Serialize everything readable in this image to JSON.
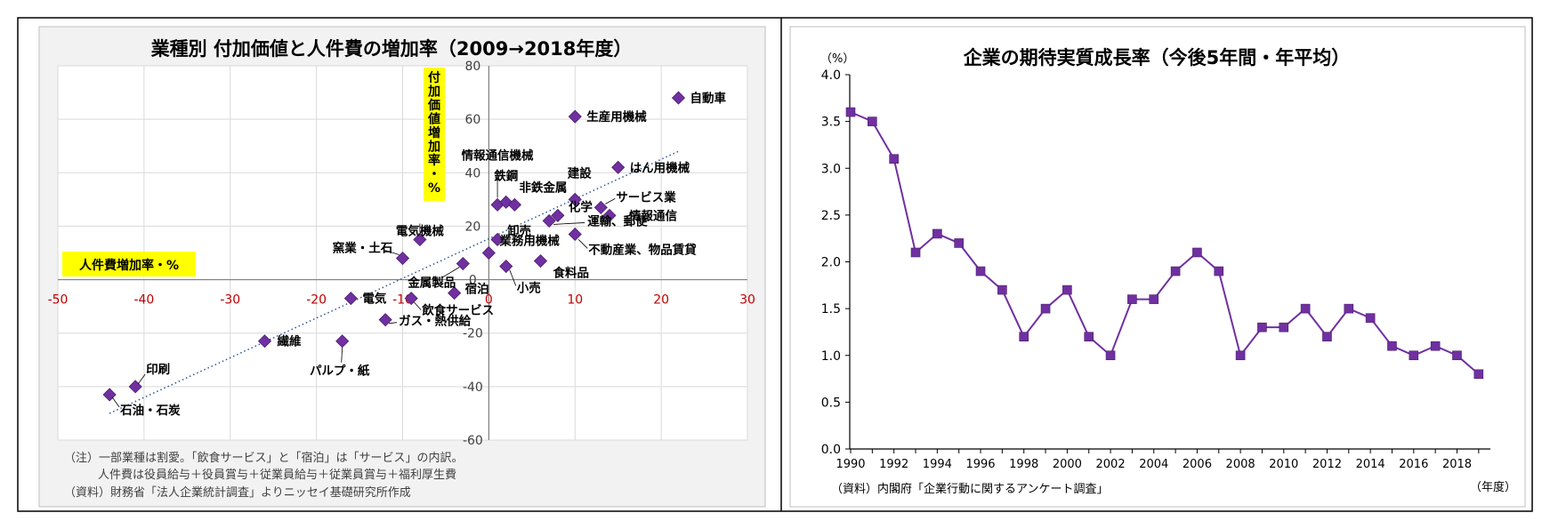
{
  "colors": {
    "point": "#7030A0",
    "point_edge": "#4B1E70",
    "trend": "#2F5597",
    "axis_tick_red": "#C00000",
    "highlight": "#FFFF00",
    "panel_bg": "#F2F2F2",
    "grid": "#D9D9D9"
  },
  "chart_data": [
    {
      "type": "scatter",
      "title": "業種別 付加価値と人件費の増加率（2009→2018年度）",
      "xlabel": "人件費増加率・%",
      "ylabel": "付加価値増加率・%",
      "xlim": [
        -50,
        30
      ],
      "ylim": [
        -60,
        80
      ],
      "xticks": [
        -50,
        -40,
        -30,
        -20,
        -10,
        0,
        10,
        20,
        30
      ],
      "yticks": [
        -60,
        -40,
        -20,
        0,
        20,
        40,
        60,
        80
      ],
      "grid": true,
      "trendline": {
        "style": "dotted",
        "from": [
          -44,
          -50
        ],
        "to": [
          22,
          48
        ]
      },
      "points": [
        {
          "label": "自動車",
          "x": 22,
          "y": 68
        },
        {
          "label": "生産用機械",
          "x": 10,
          "y": 61
        },
        {
          "label": "はん用機械",
          "x": 15,
          "y": 42
        },
        {
          "label": "情報通信機械",
          "x": 1,
          "y": 28
        },
        {
          "label": "鉄鋼",
          "x": 2,
          "y": 29
        },
        {
          "label": "非鉄金属",
          "x": 3,
          "y": 28
        },
        {
          "label": "建設",
          "x": 10,
          "y": 30
        },
        {
          "label": "サービス業",
          "x": 13,
          "y": 27
        },
        {
          "label": "情報通信",
          "x": 14,
          "y": 24
        },
        {
          "label": "化学",
          "x": 8,
          "y": 24
        },
        {
          "label": "運輸、郵便",
          "x": 7,
          "y": 22
        },
        {
          "label": "不動産業、物品賃貸",
          "x": 10,
          "y": 17
        },
        {
          "label": "電気機械",
          "x": -8,
          "y": 15
        },
        {
          "label": "卸売",
          "x": 1,
          "y": 15
        },
        {
          "label": "業務用機械",
          "x": 0,
          "y": 10
        },
        {
          "label": "窯業・土石",
          "x": -10,
          "y": 8
        },
        {
          "label": "金属製品",
          "x": -3,
          "y": 6
        },
        {
          "label": "食料品",
          "x": 6,
          "y": 7
        },
        {
          "label": "小売",
          "x": 2,
          "y": 5
        },
        {
          "label": "宿泊",
          "x": -4,
          "y": -5
        },
        {
          "label": "電気",
          "x": -16,
          "y": -7
        },
        {
          "label": "飲食サービス",
          "x": -9,
          "y": -7
        },
        {
          "label": "ガス・熱供給",
          "x": -12,
          "y": -15
        },
        {
          "label": "繊維",
          "x": -26,
          "y": -23
        },
        {
          "label": "パルプ・紙",
          "x": -17,
          "y": -23
        },
        {
          "label": "印刷",
          "x": -41,
          "y": -40
        },
        {
          "label": "石油・石炭",
          "x": -44,
          "y": -43
        }
      ],
      "notes": [
        "（注）一部業種は割愛。「飲食サービス」と「宿泊」は「サービス」の内訳。",
        "人件費は役員給与＋役員賞与＋従業員給与＋従業員賞与＋福利厚生費",
        "（資料）財務省「法人企業統計調査」よりニッセイ基礎研究所作成"
      ]
    },
    {
      "type": "line",
      "title": "企業の期待実質成長率（今後5年間・年平均）",
      "y_unit": "（%）",
      "x_unit": "（年度）",
      "ylim": [
        0.0,
        4.0
      ],
      "yticks": [
        "0.0",
        "0.5",
        "1.0",
        "1.5",
        "2.0",
        "2.5",
        "3.0",
        "3.5",
        "4.0"
      ],
      "xticks": [
        1990,
        1992,
        1994,
        1996,
        1998,
        2000,
        2002,
        2004,
        2006,
        2008,
        2010,
        2012,
        2014,
        2016,
        2018
      ],
      "grid": false,
      "x": [
        1990,
        1991,
        1992,
        1993,
        1994,
        1995,
        1996,
        1997,
        1998,
        1999,
        2000,
        2001,
        2002,
        2003,
        2004,
        2005,
        2006,
        2007,
        2008,
        2009,
        2010,
        2011,
        2012,
        2013,
        2014,
        2015,
        2016,
        2017,
        2018,
        2019
      ],
      "values": [
        3.6,
        3.5,
        3.1,
        2.1,
        2.3,
        2.2,
        1.9,
        1.7,
        1.2,
        1.5,
        1.7,
        1.2,
        1.0,
        1.6,
        1.6,
        1.9,
        2.1,
        1.9,
        1.0,
        1.3,
        1.3,
        1.5,
        1.2,
        1.5,
        1.4,
        1.1,
        1.0,
        1.1,
        1.0,
        0.8
      ],
      "source": "（資料）内閣府「企業行動に関するアンケート調査」"
    }
  ]
}
